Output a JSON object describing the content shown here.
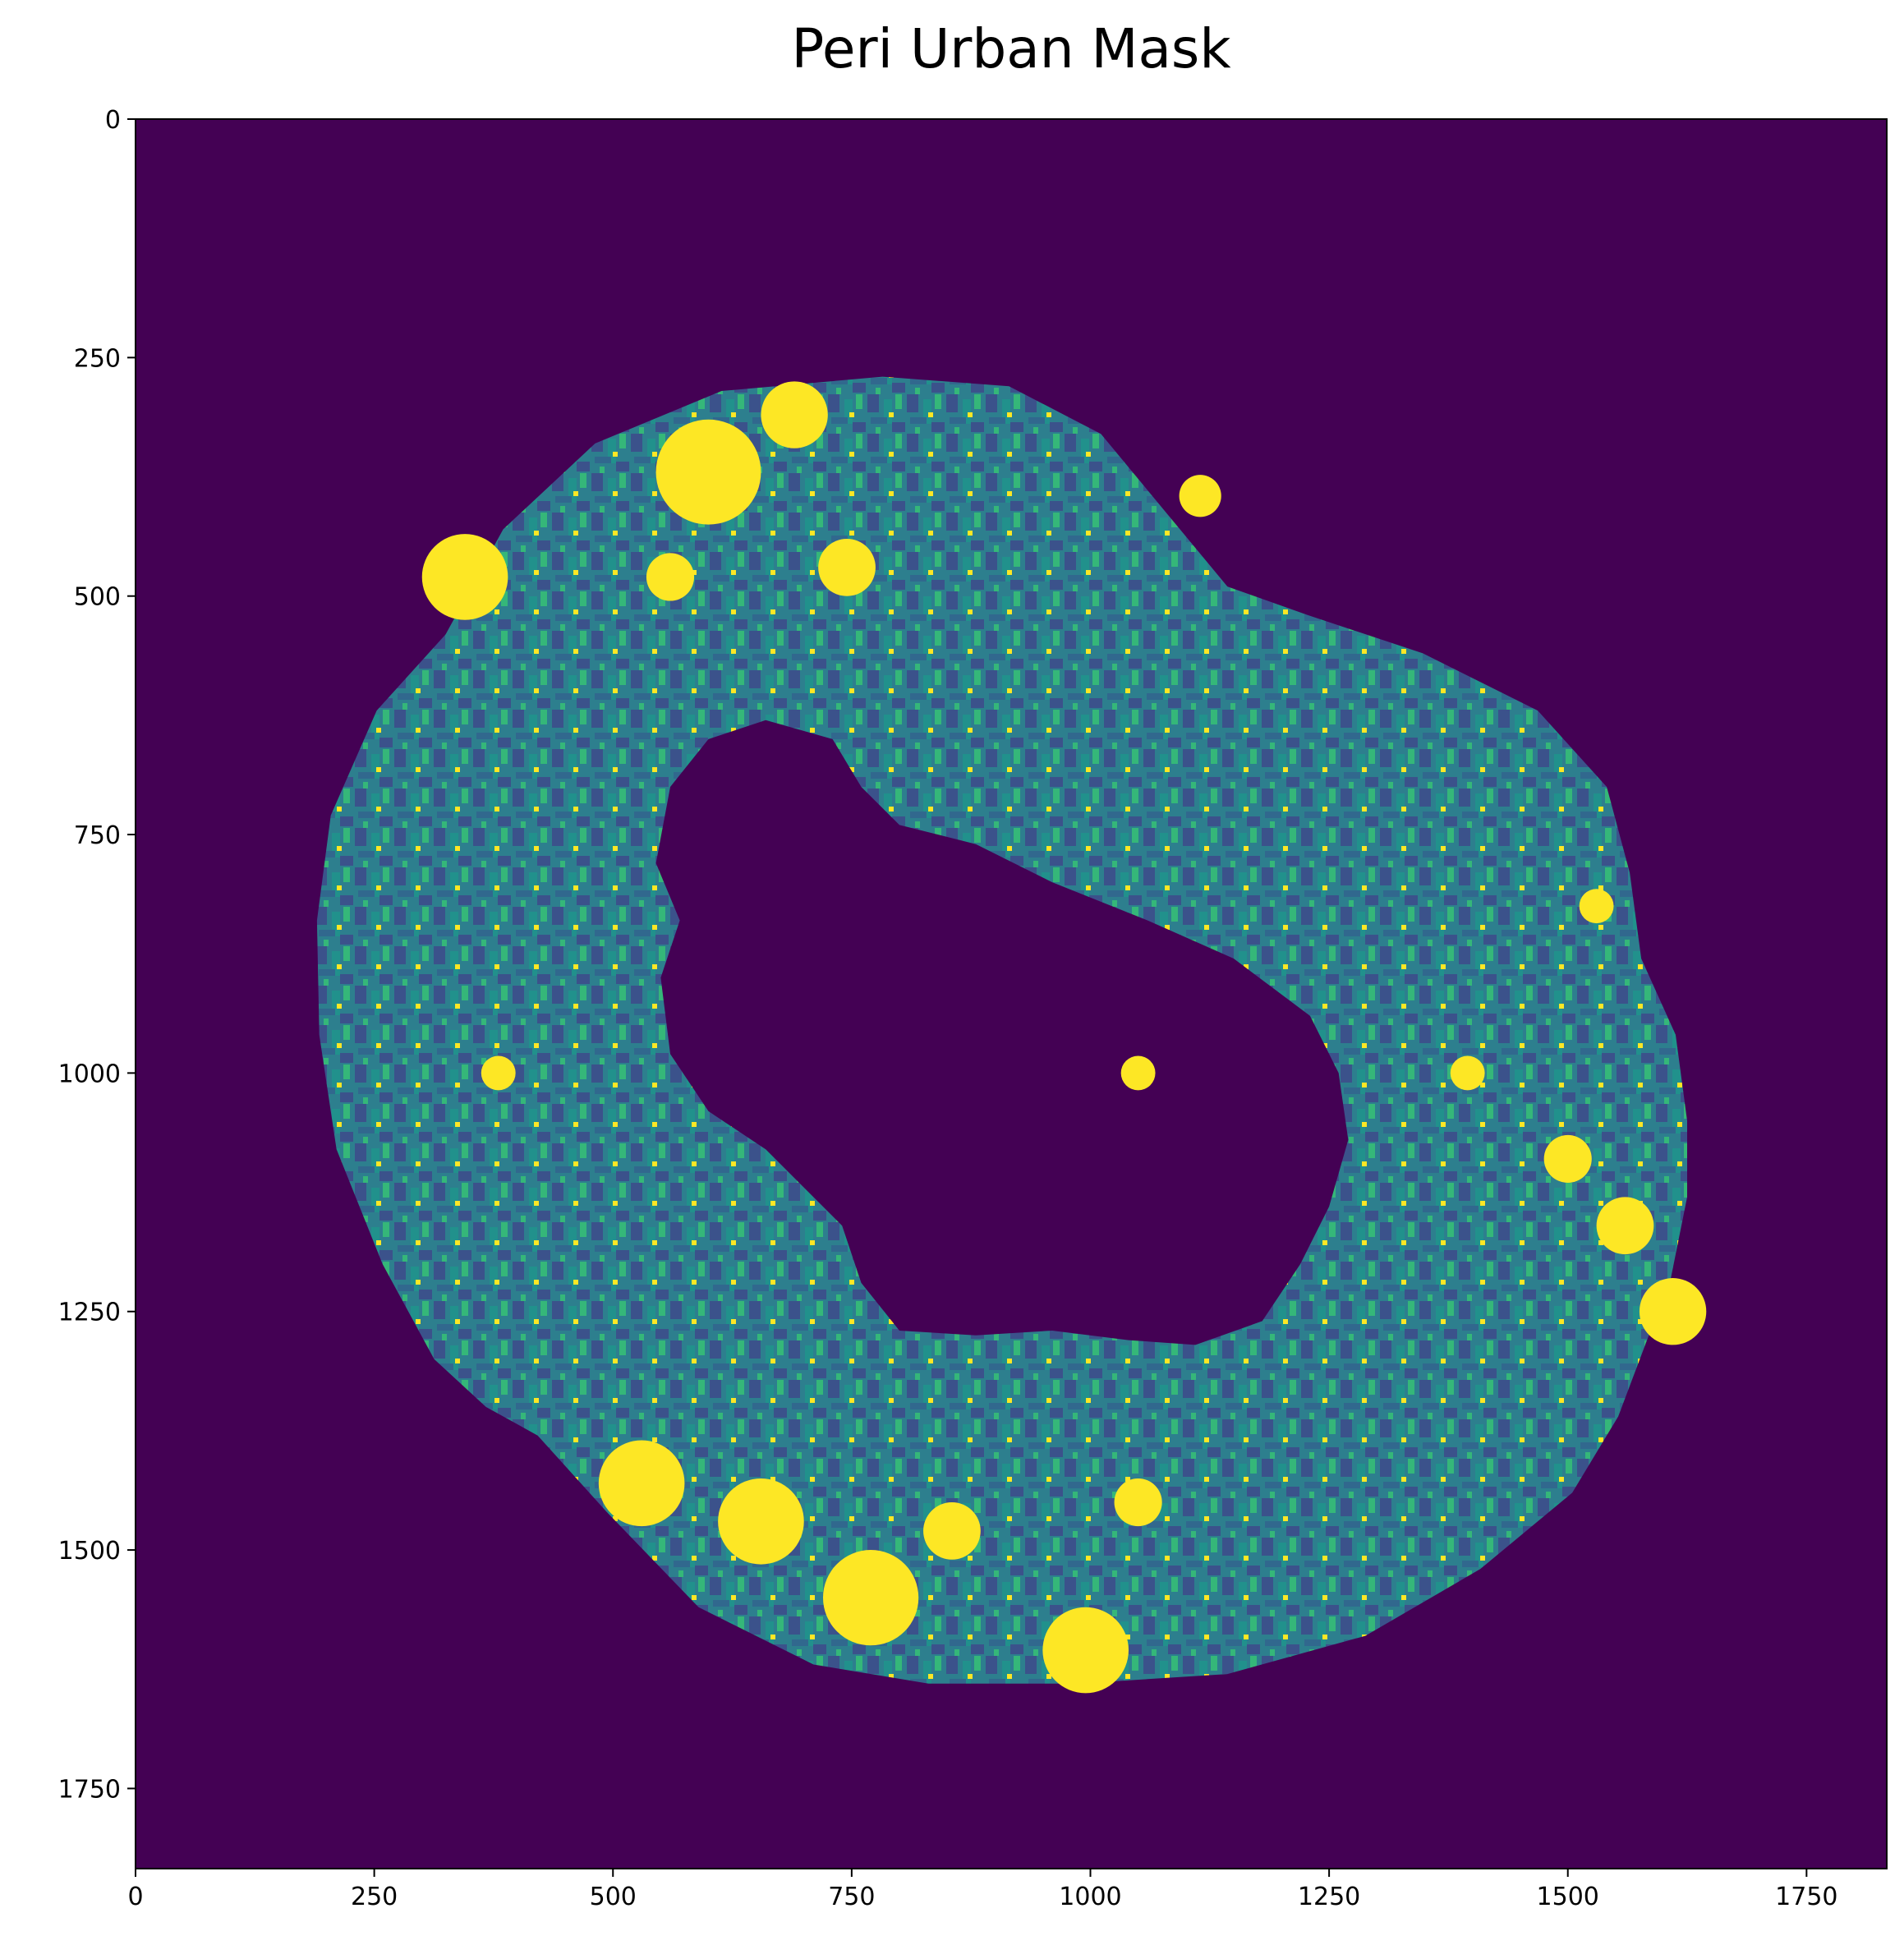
{
  "chart_data": {
    "type": "heatmap",
    "title": "Peri Urban Mask",
    "xlabel": "",
    "ylabel": "",
    "xlim": [
      0,
      1834
    ],
    "ylim": [
      1834,
      0
    ],
    "x_ticks": [
      0,
      250,
      500,
      750,
      1000,
      1250,
      1500,
      1750
    ],
    "y_ticks": [
      0,
      250,
      500,
      750,
      1000,
      1250,
      1500,
      1750
    ],
    "grid": false,
    "colormap": "viridis",
    "colors": {
      "background": "#440154",
      "dark_blue": "#3b528b",
      "teal": "#21918c",
      "green": "#35b779",
      "yellow": "#fde725"
    },
    "mask_region": {
      "shape": "ring",
      "outer_extent_x": [
        190,
        1625
      ],
      "outer_extent_y": [
        270,
        1640
      ],
      "inner_hole_extent_x": [
        545,
        1270
      ],
      "inner_hole_extent_y": [
        630,
        1285
      ]
    },
    "urban_patches": [
      {
        "x": 345,
        "y": 480,
        "r": 45
      },
      {
        "x": 600,
        "y": 370,
        "r": 55
      },
      {
        "x": 690,
        "y": 310,
        "r": 35
      },
      {
        "x": 745,
        "y": 470,
        "r": 30
      },
      {
        "x": 560,
        "y": 480,
        "r": 25
      },
      {
        "x": 1115,
        "y": 395,
        "r": 22
      },
      {
        "x": 1050,
        "y": 1000,
        "r": 18
      },
      {
        "x": 1500,
        "y": 1090,
        "r": 25
      },
      {
        "x": 1560,
        "y": 1160,
        "r": 30
      },
      {
        "x": 1610,
        "y": 1250,
        "r": 35
      },
      {
        "x": 530,
        "y": 1430,
        "r": 45
      },
      {
        "x": 655,
        "y": 1470,
        "r": 45
      },
      {
        "x": 770,
        "y": 1550,
        "r": 50
      },
      {
        "x": 855,
        "y": 1480,
        "r": 30
      },
      {
        "x": 995,
        "y": 1605,
        "r": 45
      },
      {
        "x": 1050,
        "y": 1450,
        "r": 25
      },
      {
        "x": 380,
        "y": 1000,
        "r": 18
      },
      {
        "x": 1530,
        "y": 825,
        "r": 18
      },
      {
        "x": 1395,
        "y": 1000,
        "r": 18
      }
    ]
  }
}
